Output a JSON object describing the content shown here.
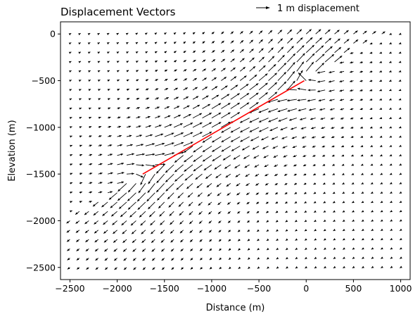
{
  "chart_data": {
    "type": "quiver",
    "title": "Displacement Vectors",
    "xlabel": "Distance (m)",
    "ylabel": "Elevation (m)",
    "xlim": [
      -2600,
      1100
    ],
    "ylim": [
      -2630,
      130
    ],
    "xticks": [
      -2500,
      -2000,
      -1500,
      -1000,
      -500,
      0,
      500,
      1000
    ],
    "xtick_labels": [
      "−2500",
      "−2000",
      "−1500",
      "−1000",
      "−500",
      "0",
      "500",
      "1000"
    ],
    "yticks": [
      0,
      -500,
      -1000,
      -1500,
      -2000,
      -2500
    ],
    "ytick_labels": [
      "0",
      "−500",
      "−1000",
      "−1500",
      "−2000",
      "−2500"
    ],
    "quiver_key": {
      "label": "1 m displacement",
      "magnitude_m": 1
    },
    "grid": {
      "x_start": -2500,
      "x_end": 1000,
      "x_step": 100,
      "y_start": 0,
      "y_end": -2500,
      "y_step": -100
    },
    "fault": {
      "color": "#ff0000",
      "x": [
        -1730,
        -20
      ],
      "y": [
        -1500,
        -500
      ]
    },
    "colors": {
      "arrows": "#000000",
      "fault": "#ff0000"
    }
  }
}
